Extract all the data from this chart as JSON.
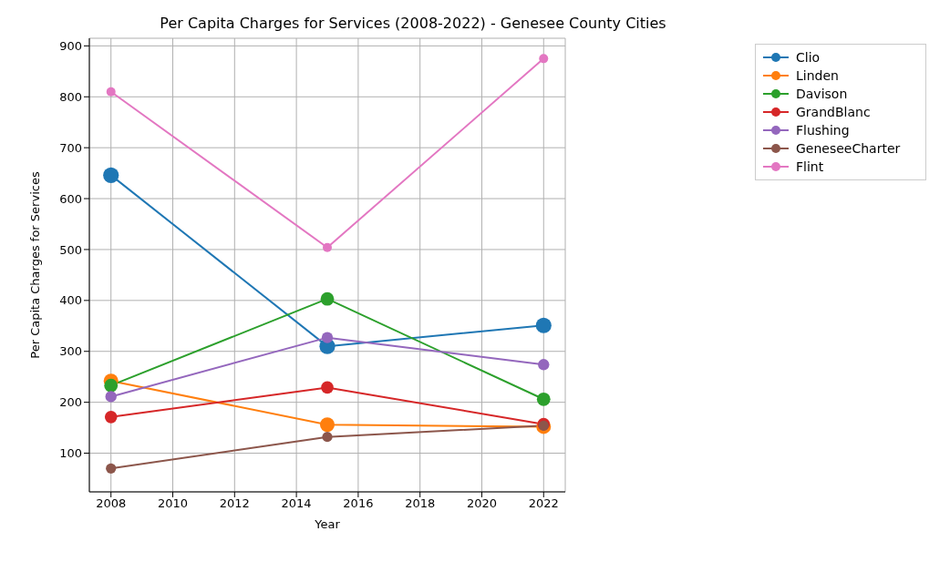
{
  "chart_data": {
    "type": "line",
    "title": "Per Capita Charges for Services (2008-2022) - Genesee County Cities",
    "xlabel": "Year",
    "ylabel": "Per Capita Charges for Services",
    "x": [
      2008,
      2015,
      2022
    ],
    "series": [
      {
        "name": "Clio",
        "color": "#1f77b4",
        "values": [
          646,
          310,
          351
        ]
      },
      {
        "name": "Linden",
        "color": "#ff7f0e",
        "values": [
          242,
          156,
          152
        ]
      },
      {
        "name": "Davison",
        "color": "#2ca02c",
        "values": [
          233,
          403,
          206
        ]
      },
      {
        "name": "GrandBlanc",
        "color": "#d62728",
        "values": [
          171,
          229,
          157
        ]
      },
      {
        "name": "Flushing",
        "color": "#9467bd",
        "values": [
          211,
          327,
          274
        ]
      },
      {
        "name": "GeneseeCharter",
        "color": "#8c564b",
        "values": [
          70,
          132,
          154
        ]
      },
      {
        "name": "Flint",
        "color": "#e377c2",
        "values": [
          810,
          504,
          875
        ]
      }
    ],
    "xlim": [
      2007.3,
      2022.7
    ],
    "xticks": [
      2008,
      2010,
      2012,
      2014,
      2016,
      2018,
      2020,
      2022
    ],
    "ylim": [
      24,
      915
    ],
    "yticks": [
      100,
      200,
      300,
      400,
      500,
      600,
      700,
      800,
      900
    ],
    "grid": true,
    "legend": "top right",
    "marker": "circle",
    "line_style": "solid"
  }
}
